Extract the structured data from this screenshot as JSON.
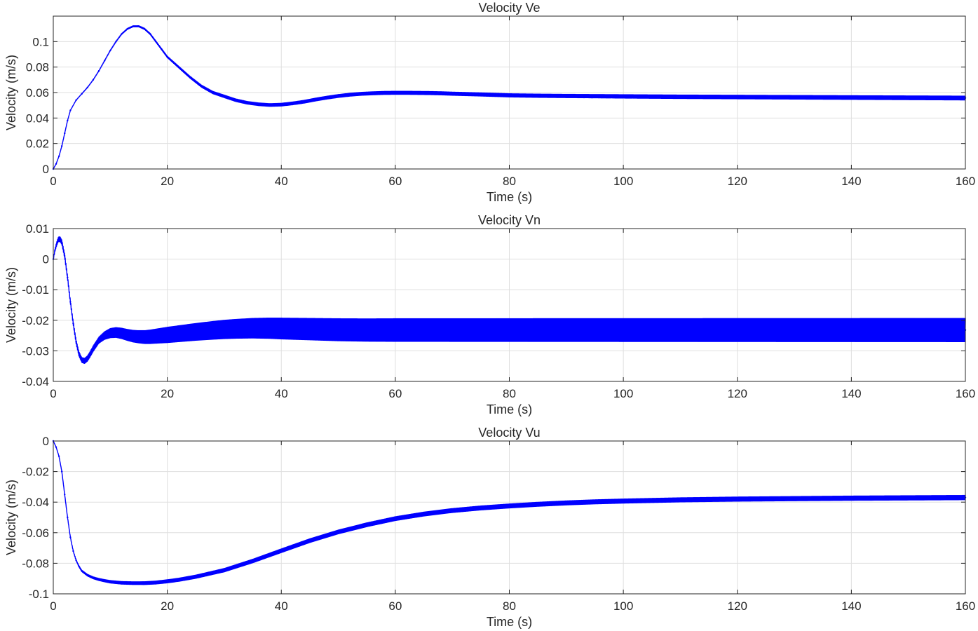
{
  "colors": {
    "series": "#0000ff",
    "axis": "#262626",
    "grid": "#dfdfdf",
    "background": "#ffffff"
  },
  "chart_data": [
    {
      "type": "line",
      "title": "Velocity  Ve",
      "xlabel": "Time (s)",
      "ylabel": "Velocity (m/s)",
      "xlim": [
        0,
        160
      ],
      "ylim": [
        0,
        0.12
      ],
      "xticks": [
        0,
        20,
        40,
        60,
        80,
        100,
        120,
        140,
        160
      ],
      "xtick_labels": [
        "0",
        "20",
        "40",
        "60",
        "80",
        "100",
        "120",
        "140",
        "160"
      ],
      "yticks": [
        0,
        0.02,
        0.04,
        0.06,
        0.08,
        0.1
      ],
      "ytick_labels": [
        "0",
        "0.02",
        "0.04",
        "0.06",
        "0.08",
        "0.1"
      ],
      "grid": true,
      "legend": "none",
      "oscillation_band": [
        [
          0,
          0
        ],
        [
          20,
          0.0006
        ],
        [
          30,
          0.001
        ],
        [
          60,
          0.0012
        ],
        [
          160,
          0.0015
        ]
      ],
      "series": [
        {
          "x": [
            0,
            0.5,
            1,
            1.5,
            2,
            2.5,
            3,
            4,
            5,
            6,
            7,
            8,
            9,
            10,
            11,
            12,
            13,
            14,
            15,
            16,
            17,
            18,
            19,
            20,
            22,
            24,
            26,
            28,
            30,
            32,
            34,
            36,
            38,
            40,
            42,
            44,
            46,
            48,
            50,
            52,
            54,
            56,
            58,
            60,
            62,
            64,
            66,
            68,
            70,
            75,
            80,
            85,
            90,
            100,
            110,
            120,
            130,
            140,
            150,
            160
          ],
          "y": [
            0,
            0.004,
            0.01,
            0.018,
            0.028,
            0.038,
            0.046,
            0.054,
            0.059,
            0.064,
            0.07,
            0.077,
            0.085,
            0.093,
            0.1,
            0.106,
            0.11,
            0.112,
            0.112,
            0.11,
            0.106,
            0.1,
            0.094,
            0.088,
            0.08,
            0.072,
            0.065,
            0.06,
            0.057,
            0.054,
            0.052,
            0.0508,
            0.0502,
            0.0505,
            0.0515,
            0.0528,
            0.0545,
            0.056,
            0.0573,
            0.0583,
            0.059,
            0.0594,
            0.0597,
            0.0598,
            0.0598,
            0.0597,
            0.0596,
            0.0594,
            0.0591,
            0.0585,
            0.0578,
            0.0575,
            0.0573,
            0.057,
            0.0567,
            0.0565,
            0.0563,
            0.0561,
            0.0559,
            0.0557
          ]
        }
      ]
    },
    {
      "type": "line",
      "title": "Velocity  Vn",
      "xlabel": "Time (s)",
      "ylabel": "Velocity (m/s)",
      "xlim": [
        0,
        160
      ],
      "ylim": [
        -0.04,
        0.01
      ],
      "xticks": [
        0,
        20,
        40,
        60,
        80,
        100,
        120,
        140,
        160
      ],
      "xtick_labels": [
        "0",
        "20",
        "40",
        "60",
        "80",
        "100",
        "120",
        "140",
        "160"
      ],
      "yticks": [
        -0.04,
        -0.03,
        -0.02,
        -0.01,
        0,
        0.01
      ],
      "ytick_labels": [
        "-0.04",
        "-0.03",
        "-0.02",
        "-0.01",
        "0",
        "0.01"
      ],
      "grid": true,
      "legend": "none",
      "oscillation_band": [
        [
          0,
          0.0003
        ],
        [
          1,
          0.0008
        ],
        [
          3,
          0.0006
        ],
        [
          5,
          0.0008
        ],
        [
          8,
          0.001
        ],
        [
          10,
          0.0015
        ],
        [
          15,
          0.002
        ],
        [
          20,
          0.0025
        ],
        [
          30,
          0.003
        ],
        [
          40,
          0.0034
        ],
        [
          50,
          0.0036
        ],
        [
          60,
          0.0037
        ],
        [
          160,
          0.0038
        ]
      ],
      "series": [
        {
          "x": [
            0,
            0.3,
            0.6,
            0.9,
            1.2,
            1.5,
            2,
            2.5,
            3,
            3.5,
            4,
            4.5,
            5,
            5.5,
            6,
            6.5,
            7,
            8,
            9,
            10,
            11,
            12,
            13,
            14,
            15,
            16,
            17,
            18,
            20,
            22,
            25,
            28,
            30,
            32,
            35,
            38,
            40,
            45,
            50,
            55,
            60,
            70,
            80,
            100,
            120,
            140,
            160
          ],
          "y": [
            0,
            0.003,
            0.005,
            0.0065,
            0.0065,
            0.0055,
            0.001,
            -0.006,
            -0.014,
            -0.021,
            -0.027,
            -0.031,
            -0.033,
            -0.0333,
            -0.0325,
            -0.031,
            -0.0293,
            -0.0265,
            -0.025,
            -0.0242,
            -0.024,
            -0.0243,
            -0.0248,
            -0.0252,
            -0.0254,
            -0.0255,
            -0.0254,
            -0.0252,
            -0.0248,
            -0.0244,
            -0.0238,
            -0.0233,
            -0.023,
            -0.0228,
            -0.0226,
            -0.0226,
            -0.0227,
            -0.0229,
            -0.0231,
            -0.0232,
            -0.0232,
            -0.0232,
            -0.0232,
            -0.0232,
            -0.0232,
            -0.0232,
            -0.0232
          ]
        }
      ]
    },
    {
      "type": "line",
      "title": "Velocity  Vu",
      "xlabel": "Time (s)",
      "ylabel": "Velocity (m/s)",
      "xlim": [
        0,
        160
      ],
      "ylim": [
        -0.1,
        0
      ],
      "xticks": [
        0,
        20,
        40,
        60,
        80,
        100,
        120,
        140,
        160
      ],
      "xtick_labels": [
        "0",
        "20",
        "40",
        "60",
        "80",
        "100",
        "120",
        "140",
        "160"
      ],
      "yticks": [
        -0.1,
        -0.08,
        -0.06,
        -0.04,
        -0.02,
        0
      ],
      "ytick_labels": [
        "-0.1",
        "-0.08",
        "-0.06",
        "-0.04",
        "-0.02",
        "0"
      ],
      "grid": true,
      "legend": "none",
      "oscillation_band": [
        [
          0,
          0
        ],
        [
          5,
          0.0005
        ],
        [
          10,
          0.0008
        ],
        [
          20,
          0.001
        ],
        [
          40,
          0.0012
        ],
        [
          80,
          0.0013
        ],
        [
          160,
          0.0014
        ]
      ],
      "series": [
        {
          "x": [
            0,
            0.5,
            1,
            1.5,
            2,
            2.5,
            3,
            3.5,
            4,
            4.5,
            5,
            6,
            7,
            8,
            9,
            10,
            12,
            14,
            16,
            18,
            20,
            22,
            25,
            30,
            35,
            40,
            45,
            50,
            55,
            60,
            65,
            70,
            75,
            80,
            85,
            90,
            95,
            100,
            110,
            120,
            130,
            140,
            150,
            160
          ],
          "y": [
            0,
            -0.004,
            -0.01,
            -0.02,
            -0.035,
            -0.05,
            -0.063,
            -0.072,
            -0.078,
            -0.082,
            -0.085,
            -0.0878,
            -0.0895,
            -0.0906,
            -0.0914,
            -0.0921,
            -0.0928,
            -0.093,
            -0.093,
            -0.0926,
            -0.0918,
            -0.0908,
            -0.0888,
            -0.0845,
            -0.0785,
            -0.0718,
            -0.0652,
            -0.0595,
            -0.0548,
            -0.0508,
            -0.0478,
            -0.0455,
            -0.0438,
            -0.0425,
            -0.0414,
            -0.0405,
            -0.0398,
            -0.0393,
            -0.0385,
            -0.038,
            -0.0377,
            -0.0374,
            -0.0372,
            -0.037
          ]
        }
      ]
    }
  ]
}
